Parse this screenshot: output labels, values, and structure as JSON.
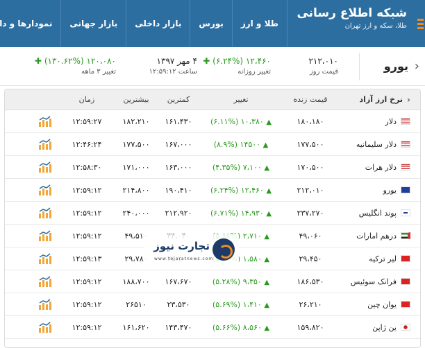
{
  "navbar": {
    "brand_title": "شبکه اطلاع رسانی",
    "brand_sub": "طلا، سکه و ارز تهران",
    "items": [
      "طلا و ارز",
      "بورس",
      "بازار داخلی",
      "بازار جهانی",
      "نمودارها و دا"
    ]
  },
  "summary": {
    "title": "یورو",
    "price_value": "۲۱۲،۰۱۰",
    "price_label": "قیمت روز",
    "daily_change_value": "۱۲،۴۶۰ (۶.۲۴%)",
    "daily_change_label": "تغییر روزانه",
    "date_value": "۴ مهر ۱۳۹۷",
    "time_label": "ساعت ۱۲:۵۹:۱۲",
    "three_month_value": "۱۲۰،۰۸۰ (۱۳۰.۶۲%)",
    "three_month_label": "تغییر ۳ ماهه"
  },
  "table": {
    "headers": {
      "name": "نرخ ارز آزاد",
      "live": "قیمت زنده",
      "change": "تغییر",
      "min": "کمترین",
      "max": "بیشترین",
      "time": "زمان"
    },
    "rows": [
      {
        "name": "دلار",
        "flag": "us",
        "live": "۱۸۰،۱۸۰",
        "change": "۱۰،۳۸۰ (۶.۱۱%)",
        "min": "۱۶۱،۴۳۰",
        "max": "۱۸۲،۲۱۰",
        "time": "۱۲:۵۹:۲۷"
      },
      {
        "name": "دلار سلیمانیه",
        "flag": "us",
        "live": "۱۷۷،۵۰۰",
        "change": "۱۴۵۰۰ (۸.۹%)",
        "min": "۱۶۷،۰۰۰",
        "max": "۱۷۷،۵۰۰",
        "time": "۱۲:۴۶:۲۴"
      },
      {
        "name": "دلار هرات",
        "flag": "us",
        "live": "۱۷۰،۵۰۰",
        "change": "۷،۱۰۰ (۴.۳۵%)",
        "min": "۱۶۳،۰۰۰",
        "max": "۱۷۱،۰۰۰",
        "time": "۱۲:۵۸:۳۰"
      },
      {
        "name": "یورو",
        "flag": "eu",
        "live": "۲۱۲،۰۱۰",
        "change": "۱۲،۴۶۰ (۶.۲۴%)",
        "min": "۱۹۰،۴۱۰",
        "max": "۲۱۴،۸۰۰",
        "time": "۱۲:۵۹:۱۲"
      },
      {
        "name": "پوند انگلیس",
        "flag": "gb",
        "live": "۲۳۷،۲۷۰",
        "change": "۱۴،۹۳۰ (۶.۷۱%)",
        "min": "۲۱۲،۹۲۰",
        "max": "۲۴۰،۰۰۰",
        "time": "۱۲:۵۹:۱۲"
      },
      {
        "name": "درهم امارات",
        "flag": "ae",
        "live": "۴۹،۰۶۰",
        "change": "۲،۷۱۰ (۵.۸۸%)",
        "min": "۴۴،۰۴۰",
        "max": "۴۹،۵۱۰",
        "time": "۱۲:۵۹:۱۲"
      },
      {
        "name": "لیر ترکیه",
        "flag": "tr",
        "live": "۲۹،۴۵۰",
        "change": "۱،۵۸۰ (۵.۶۷%)",
        "min": "۲۶،۷۰۰",
        "max": "۲۹،۷۸۰",
        "time": "۱۲:۵۹:۱۳"
      },
      {
        "name": "فرانک سوئیس",
        "flag": "ch",
        "live": "۱۸۶،۵۳۰",
        "change": "۹،۳۵۰ (۵.۲۸%)",
        "min": "۱۶۷،۶۷۰",
        "max": "۱۸۸،۷۰۰",
        "time": "۱۲:۵۹:۱۲"
      },
      {
        "name": "یوان چین",
        "flag": "cn",
        "live": "۲۶،۲۱۰",
        "change": "۱،۴۱۰ (۵.۶۹%)",
        "min": "۲۳،۵۳۰",
        "max": "۲۶۵۱۰",
        "time": "۱۲:۵۹:۱۲"
      },
      {
        "name": "ین ژاپن",
        "flag": "jp",
        "live": "۱۵۹،۸۲۰",
        "change": "۸،۵۶۰ (۵.۶۶%)",
        "min": "۱۴۳،۴۷۰",
        "max": "۱۶۱،۶۲۰",
        "time": "۱۲:۵۹:۱۲"
      }
    ]
  },
  "watermark": {
    "brand": "تجارت نیوز",
    "url": "www.tejaratnews.com"
  },
  "colors": {
    "nav_bg": "#2d6ea0",
    "accent_orange": "#f28a1d",
    "positive_green": "#2a9a1e",
    "header_bg": "#efefef"
  },
  "icons": {
    "menu": "hamburger-icon",
    "up": "triangle-up-icon",
    "chart": "mini-bar-chart-icon",
    "chevron": "chevron-left-icon"
  }
}
